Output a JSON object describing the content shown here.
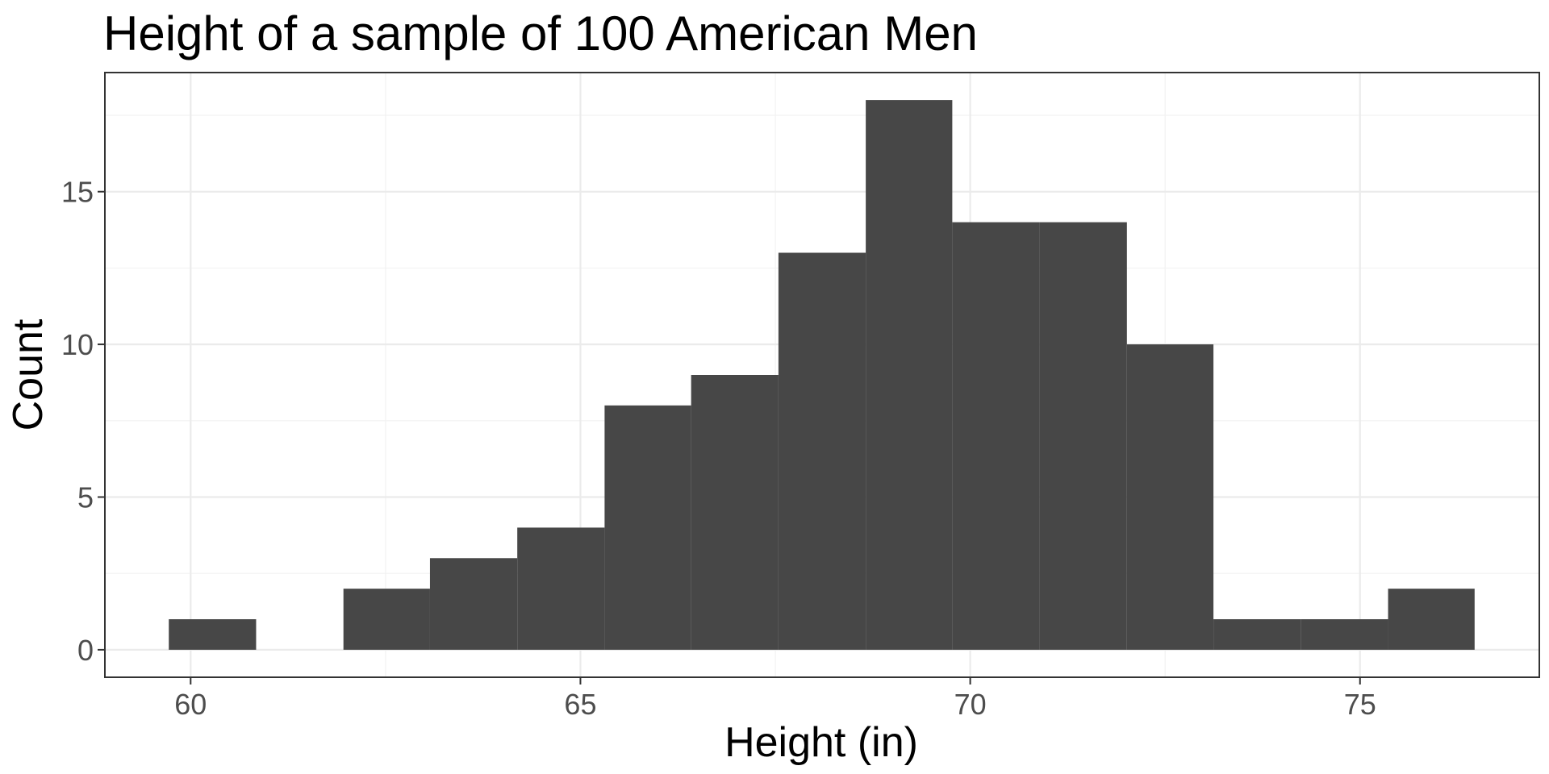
{
  "chart_data": {
    "type": "bar",
    "title": "Height of a sample of 100 American Men",
    "xlabel": "Height (in)",
    "ylabel": "Count",
    "xlim": [
      58.9,
      77.3
    ],
    "ylim": [
      -0.9,
      18.9
    ],
    "x_ticks": [
      60,
      65,
      70,
      75
    ],
    "x_tick_labels": [
      "60",
      "65",
      "70",
      "75"
    ],
    "y_ticks": [
      0,
      5,
      10,
      15
    ],
    "y_tick_labels": [
      "0",
      "5",
      "10",
      "15"
    ],
    "grid": true,
    "bin_width": 1.117,
    "bins": [
      {
        "x_start": 59.72,
        "x_end": 60.84,
        "count": 1
      },
      {
        "x_start": 60.84,
        "x_end": 61.96,
        "count": 0
      },
      {
        "x_start": 61.96,
        "x_end": 63.07,
        "count": 2
      },
      {
        "x_start": 63.07,
        "x_end": 64.19,
        "count": 3
      },
      {
        "x_start": 64.19,
        "x_end": 65.31,
        "count": 4
      },
      {
        "x_start": 65.31,
        "x_end": 66.42,
        "count": 8
      },
      {
        "x_start": 66.42,
        "x_end": 67.54,
        "count": 9
      },
      {
        "x_start": 67.54,
        "x_end": 68.66,
        "count": 13
      },
      {
        "x_start": 68.66,
        "x_end": 69.77,
        "count": 18
      },
      {
        "x_start": 69.77,
        "x_end": 70.89,
        "count": 14
      },
      {
        "x_start": 70.89,
        "x_end": 72.01,
        "count": 14
      },
      {
        "x_start": 72.01,
        "x_end": 73.12,
        "count": 10
      },
      {
        "x_start": 73.12,
        "x_end": 74.24,
        "count": 1
      },
      {
        "x_start": 74.24,
        "x_end": 75.36,
        "count": 1
      },
      {
        "x_start": 75.36,
        "x_end": 76.47,
        "count": 2
      }
    ],
    "colors": {
      "bar": "#474747",
      "grid": "#ebebeb",
      "border": "#333333",
      "tick_text": "#4d4d4d"
    }
  }
}
